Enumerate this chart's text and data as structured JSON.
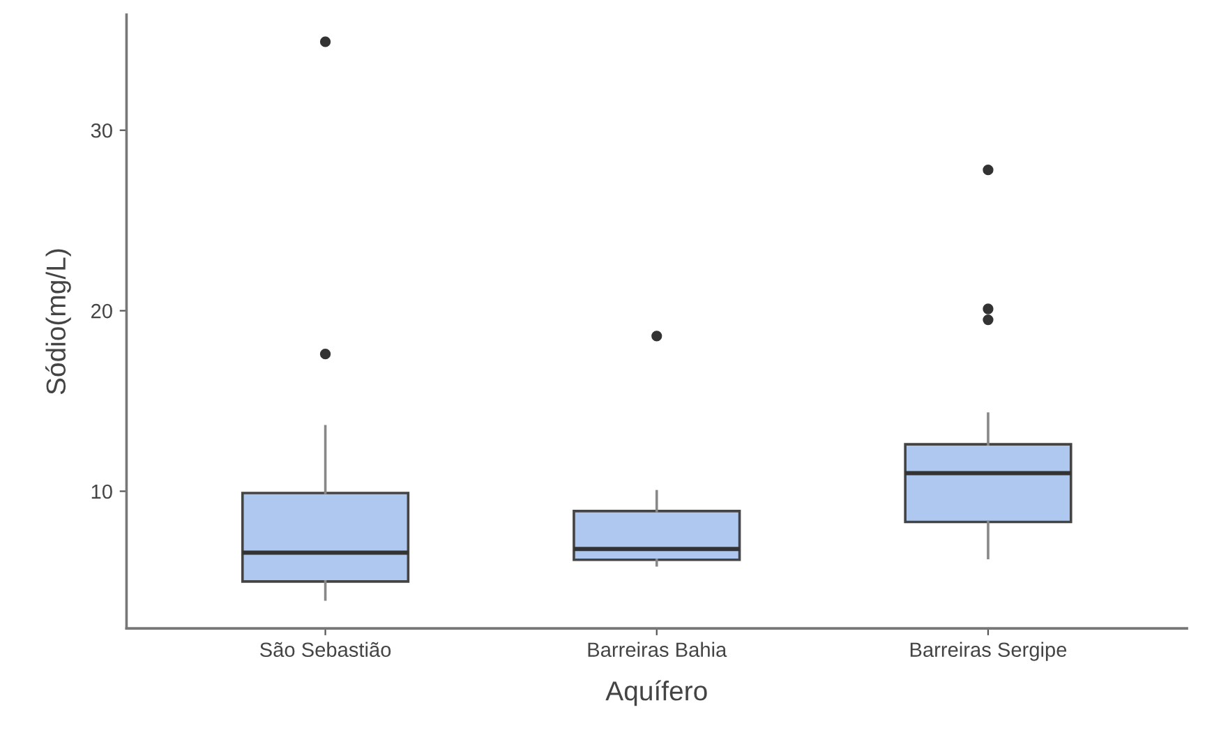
{
  "chart_data": {
    "type": "box",
    "xlabel": "Aquífero",
    "ylabel": "Sódio(mg/L)",
    "categories": [
      "São Sebastião",
      "Barreiras Bahia",
      "Barreiras Sergipe"
    ],
    "color": "#aec8f0",
    "boxes": [
      {
        "low": 4.0,
        "q1": 5.0,
        "median": 6.6,
        "q3": 9.9,
        "high": 13.6,
        "outliers": [
          34.9,
          17.6
        ]
      },
      {
        "low": 5.9,
        "q1": 6.2,
        "median": 6.8,
        "q3": 8.9,
        "high": 10.0,
        "outliers": [
          18.6
        ]
      },
      {
        "low": 6.3,
        "q1": 8.3,
        "median": 11.0,
        "q3": 12.6,
        "high": 14.3,
        "outliers": [
          27.8,
          20.1,
          19.5
        ]
      }
    ],
    "ylim": [
      2.4,
      36.4
    ],
    "yticks": [
      10,
      20,
      30
    ],
    "grid": false,
    "legend": false
  }
}
